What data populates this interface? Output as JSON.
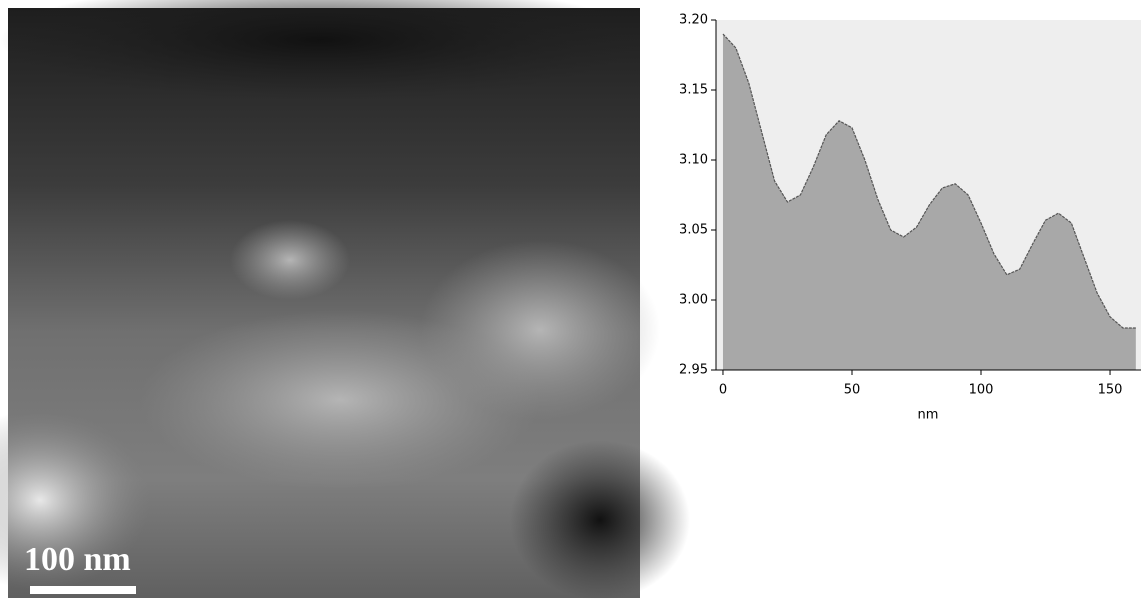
{
  "micrograph": {
    "scale_bar": "100 nm"
  },
  "chart_data": {
    "type": "area",
    "xlabel": "nm",
    "x": [
      0,
      5,
      10,
      15,
      20,
      25,
      30,
      35,
      40,
      45,
      50,
      55,
      60,
      65,
      70,
      75,
      80,
      85,
      90,
      95,
      100,
      105,
      110,
      115,
      120,
      125,
      130,
      135,
      140,
      145,
      150,
      155,
      160
    ],
    "values": [
      3.19,
      3.18,
      3.155,
      3.12,
      3.085,
      3.07,
      3.075,
      3.095,
      3.118,
      3.128,
      3.123,
      3.1,
      3.072,
      3.05,
      3.045,
      3.052,
      3.068,
      3.08,
      3.083,
      3.075,
      3.055,
      3.033,
      3.018,
      3.022,
      3.04,
      3.057,
      3.062,
      3.055,
      3.03,
      3.005,
      2.988,
      2.98,
      2.98
    ],
    "color": "#a8a8a8",
    "xlim": [
      -2.7,
      162
    ],
    "ylim": [
      2.95,
      3.2
    ],
    "xticks": [
      0,
      50,
      100,
      150
    ],
    "yticks": [
      {
        "value": 3.2,
        "label": "3.20"
      },
      3.15,
      {
        "value": 3.1,
        "label": "3.10"
      },
      3.05,
      {
        "value": 3.0,
        "label": "3.00"
      },
      2.95
    ]
  }
}
